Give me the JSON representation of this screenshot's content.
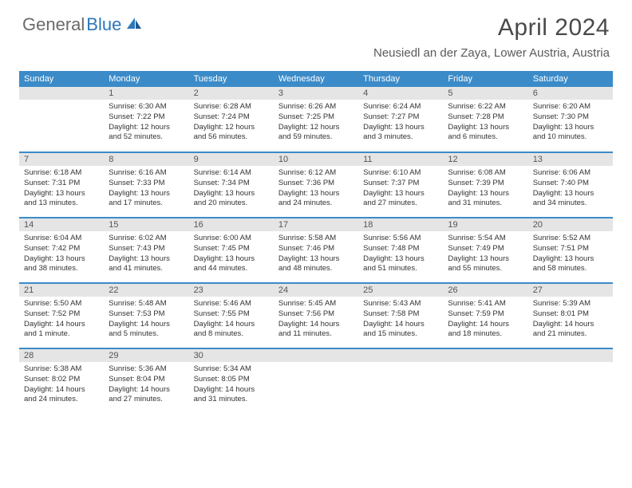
{
  "logo": {
    "part1": "General",
    "part2": "Blue"
  },
  "title": "April 2024",
  "location": "Neusiedl an der Zaya, Lower Austria, Austria",
  "colors": {
    "header_bg": "#3b8bc8",
    "header_text": "#ffffff",
    "daynum_bg": "#e5e5e5",
    "border": "#3b8bc8",
    "logo_gray": "#6b6b6b",
    "logo_blue": "#2b77bb"
  },
  "weekdays": [
    "Sunday",
    "Monday",
    "Tuesday",
    "Wednesday",
    "Thursday",
    "Friday",
    "Saturday"
  ],
  "weeks": [
    [
      {
        "num": "",
        "sunrise": "",
        "sunset": "",
        "daylight": ""
      },
      {
        "num": "1",
        "sunrise": "Sunrise: 6:30 AM",
        "sunset": "Sunset: 7:22 PM",
        "daylight": "Daylight: 12 hours and 52 minutes."
      },
      {
        "num": "2",
        "sunrise": "Sunrise: 6:28 AM",
        "sunset": "Sunset: 7:24 PM",
        "daylight": "Daylight: 12 hours and 56 minutes."
      },
      {
        "num": "3",
        "sunrise": "Sunrise: 6:26 AM",
        "sunset": "Sunset: 7:25 PM",
        "daylight": "Daylight: 12 hours and 59 minutes."
      },
      {
        "num": "4",
        "sunrise": "Sunrise: 6:24 AM",
        "sunset": "Sunset: 7:27 PM",
        "daylight": "Daylight: 13 hours and 3 minutes."
      },
      {
        "num": "5",
        "sunrise": "Sunrise: 6:22 AM",
        "sunset": "Sunset: 7:28 PM",
        "daylight": "Daylight: 13 hours and 6 minutes."
      },
      {
        "num": "6",
        "sunrise": "Sunrise: 6:20 AM",
        "sunset": "Sunset: 7:30 PM",
        "daylight": "Daylight: 13 hours and 10 minutes."
      }
    ],
    [
      {
        "num": "7",
        "sunrise": "Sunrise: 6:18 AM",
        "sunset": "Sunset: 7:31 PM",
        "daylight": "Daylight: 13 hours and 13 minutes."
      },
      {
        "num": "8",
        "sunrise": "Sunrise: 6:16 AM",
        "sunset": "Sunset: 7:33 PM",
        "daylight": "Daylight: 13 hours and 17 minutes."
      },
      {
        "num": "9",
        "sunrise": "Sunrise: 6:14 AM",
        "sunset": "Sunset: 7:34 PM",
        "daylight": "Daylight: 13 hours and 20 minutes."
      },
      {
        "num": "10",
        "sunrise": "Sunrise: 6:12 AM",
        "sunset": "Sunset: 7:36 PM",
        "daylight": "Daylight: 13 hours and 24 minutes."
      },
      {
        "num": "11",
        "sunrise": "Sunrise: 6:10 AM",
        "sunset": "Sunset: 7:37 PM",
        "daylight": "Daylight: 13 hours and 27 minutes."
      },
      {
        "num": "12",
        "sunrise": "Sunrise: 6:08 AM",
        "sunset": "Sunset: 7:39 PM",
        "daylight": "Daylight: 13 hours and 31 minutes."
      },
      {
        "num": "13",
        "sunrise": "Sunrise: 6:06 AM",
        "sunset": "Sunset: 7:40 PM",
        "daylight": "Daylight: 13 hours and 34 minutes."
      }
    ],
    [
      {
        "num": "14",
        "sunrise": "Sunrise: 6:04 AM",
        "sunset": "Sunset: 7:42 PM",
        "daylight": "Daylight: 13 hours and 38 minutes."
      },
      {
        "num": "15",
        "sunrise": "Sunrise: 6:02 AM",
        "sunset": "Sunset: 7:43 PM",
        "daylight": "Daylight: 13 hours and 41 minutes."
      },
      {
        "num": "16",
        "sunrise": "Sunrise: 6:00 AM",
        "sunset": "Sunset: 7:45 PM",
        "daylight": "Daylight: 13 hours and 44 minutes."
      },
      {
        "num": "17",
        "sunrise": "Sunrise: 5:58 AM",
        "sunset": "Sunset: 7:46 PM",
        "daylight": "Daylight: 13 hours and 48 minutes."
      },
      {
        "num": "18",
        "sunrise": "Sunrise: 5:56 AM",
        "sunset": "Sunset: 7:48 PM",
        "daylight": "Daylight: 13 hours and 51 minutes."
      },
      {
        "num": "19",
        "sunrise": "Sunrise: 5:54 AM",
        "sunset": "Sunset: 7:49 PM",
        "daylight": "Daylight: 13 hours and 55 minutes."
      },
      {
        "num": "20",
        "sunrise": "Sunrise: 5:52 AM",
        "sunset": "Sunset: 7:51 PM",
        "daylight": "Daylight: 13 hours and 58 minutes."
      }
    ],
    [
      {
        "num": "21",
        "sunrise": "Sunrise: 5:50 AM",
        "sunset": "Sunset: 7:52 PM",
        "daylight": "Daylight: 14 hours and 1 minute."
      },
      {
        "num": "22",
        "sunrise": "Sunrise: 5:48 AM",
        "sunset": "Sunset: 7:53 PM",
        "daylight": "Daylight: 14 hours and 5 minutes."
      },
      {
        "num": "23",
        "sunrise": "Sunrise: 5:46 AM",
        "sunset": "Sunset: 7:55 PM",
        "daylight": "Daylight: 14 hours and 8 minutes."
      },
      {
        "num": "24",
        "sunrise": "Sunrise: 5:45 AM",
        "sunset": "Sunset: 7:56 PM",
        "daylight": "Daylight: 14 hours and 11 minutes."
      },
      {
        "num": "25",
        "sunrise": "Sunrise: 5:43 AM",
        "sunset": "Sunset: 7:58 PM",
        "daylight": "Daylight: 14 hours and 15 minutes."
      },
      {
        "num": "26",
        "sunrise": "Sunrise: 5:41 AM",
        "sunset": "Sunset: 7:59 PM",
        "daylight": "Daylight: 14 hours and 18 minutes."
      },
      {
        "num": "27",
        "sunrise": "Sunrise: 5:39 AM",
        "sunset": "Sunset: 8:01 PM",
        "daylight": "Daylight: 14 hours and 21 minutes."
      }
    ],
    [
      {
        "num": "28",
        "sunrise": "Sunrise: 5:38 AM",
        "sunset": "Sunset: 8:02 PM",
        "daylight": "Daylight: 14 hours and 24 minutes."
      },
      {
        "num": "29",
        "sunrise": "Sunrise: 5:36 AM",
        "sunset": "Sunset: 8:04 PM",
        "daylight": "Daylight: 14 hours and 27 minutes."
      },
      {
        "num": "30",
        "sunrise": "Sunrise: 5:34 AM",
        "sunset": "Sunset: 8:05 PM",
        "daylight": "Daylight: 14 hours and 31 minutes."
      },
      {
        "num": "",
        "sunrise": "",
        "sunset": "",
        "daylight": ""
      },
      {
        "num": "",
        "sunrise": "",
        "sunset": "",
        "daylight": ""
      },
      {
        "num": "",
        "sunrise": "",
        "sunset": "",
        "daylight": ""
      },
      {
        "num": "",
        "sunrise": "",
        "sunset": "",
        "daylight": ""
      }
    ]
  ]
}
